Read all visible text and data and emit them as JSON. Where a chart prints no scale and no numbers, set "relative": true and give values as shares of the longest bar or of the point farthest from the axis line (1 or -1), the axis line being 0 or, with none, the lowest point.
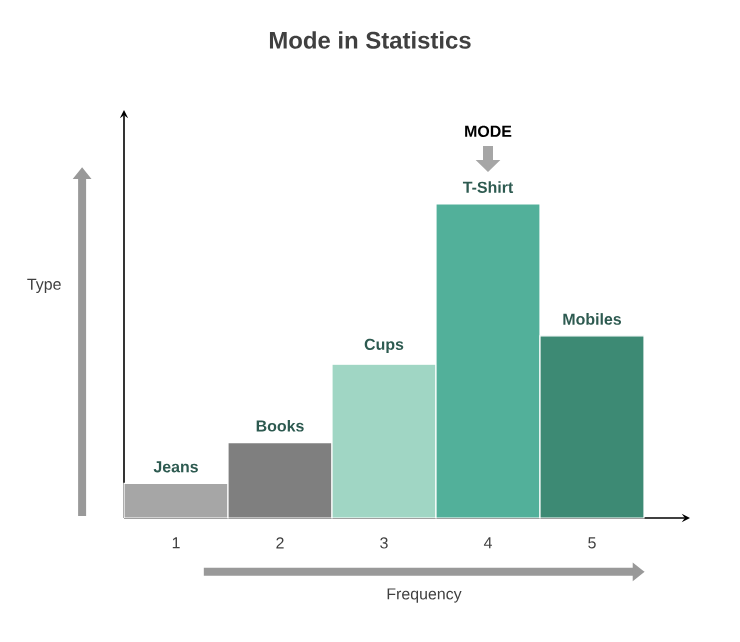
{
  "chart_data": {
    "type": "bar",
    "title": "Mode in Statistics",
    "xlabel": "Frequency",
    "ylabel": "Type",
    "categories": [
      "1",
      "2",
      "3",
      "4",
      "5"
    ],
    "values": [
      0.11,
      0.24,
      0.49,
      1,
      0.58
    ],
    "colors": [
      "#a6a6a6",
      "#7f7f7f",
      "#a0d6c4",
      "#52b09a",
      "#3d8a74"
    ],
    "relative": true,
    "annotations": [
      {
        "text": "Jeans",
        "x": "1",
        "y": 0.11
      },
      {
        "text": "Books",
        "x": "2",
        "y": 0.24
      },
      {
        "text": "Cups",
        "x": "3",
        "y": 0.49
      },
      {
        "text": "T-Shirt",
        "x": "4",
        "y": 1
      },
      {
        "text": "Mobiles",
        "x": "5",
        "y": 0.58
      },
      "MODE"
    ]
  }
}
